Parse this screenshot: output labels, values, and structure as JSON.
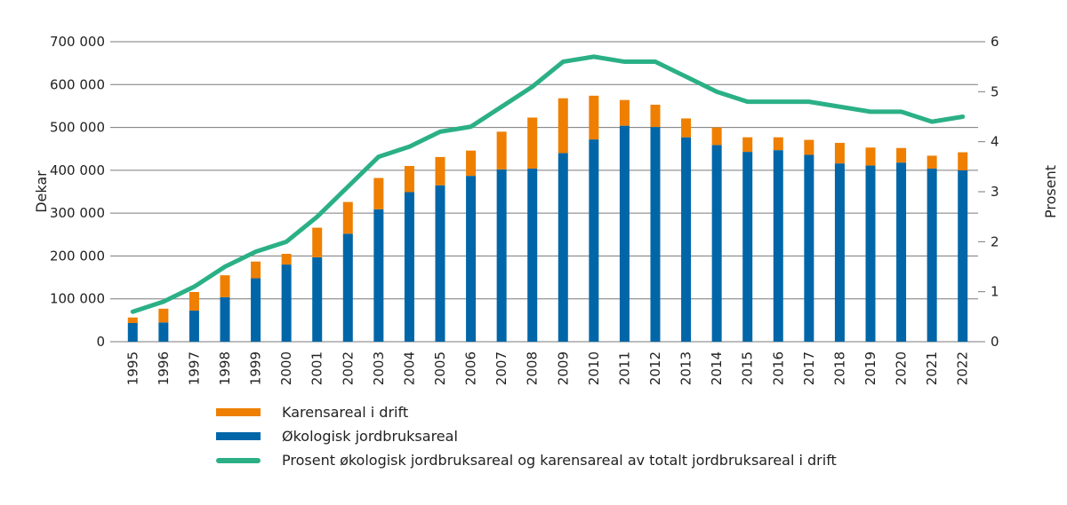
{
  "chart_data": {
    "type": "bar",
    "subtype": "stacked-bar-with-line-secondary-axis",
    "title": "",
    "categories": [
      "1995",
      "1996",
      "1997",
      "1998",
      "1999",
      "2000",
      "2001",
      "2002",
      "2003",
      "2004",
      "2005",
      "2006",
      "2007",
      "2008",
      "2009",
      "2010",
      "2011",
      "2012",
      "2013",
      "2014",
      "2015",
      "2016",
      "2017",
      "2018",
      "2019",
      "2020",
      "2021",
      "2022"
    ],
    "series": [
      {
        "name": "Økologisk jordbruksareal",
        "type": "bar",
        "axis": "left",
        "color": "#0066A8",
        "values": [
          43500,
          45000,
          72500,
          104000,
          148000,
          180000,
          197000,
          252000,
          309000,
          349000,
          365000,
          387000,
          402000,
          404000,
          440000,
          472000,
          504000,
          501000,
          477000,
          459000,
          443000,
          447000,
          436000,
          416000,
          411000,
          418000,
          404000,
          400000
        ]
      },
      {
        "name": "Karensareal i drift",
        "type": "bar",
        "axis": "left",
        "color": "#EE7F00",
        "values": [
          13000,
          32000,
          43500,
          51000,
          39000,
          25000,
          69000,
          74000,
          73000,
          61000,
          66000,
          59000,
          88000,
          119000,
          128000,
          102000,
          60000,
          52000,
          44000,
          41000,
          34000,
          30000,
          35000,
          48000,
          42000,
          34000,
          30000,
          42000
        ]
      },
      {
        "name": "Prosent økologisk jordbruksareal og karensareal av totalt jordbruksareal i drift",
        "type": "line",
        "axis": "right",
        "color": "#2BB086",
        "values": [
          0.6,
          0.8,
          1.1,
          1.5,
          1.8,
          2.0,
          2.5,
          3.1,
          3.7,
          3.9,
          4.2,
          4.3,
          4.7,
          5.1,
          5.6,
          5.7,
          5.6,
          5.6,
          5.3,
          5.0,
          4.8,
          4.8,
          4.8,
          4.7,
          4.6,
          4.6,
          4.4,
          4.5
        ]
      }
    ],
    "ylabel": "Dekar",
    "ylim": [
      0,
      700000
    ],
    "yticks": [
      0,
      100000,
      200000,
      300000,
      400000,
      500000,
      600000,
      700000
    ],
    "ytick_labels": [
      "0",
      "100 000",
      "200 000",
      "300 000",
      "400 000",
      "500 000",
      "600 000",
      "700 000"
    ],
    "y2label": "Prosent",
    "y2lim": [
      0,
      6
    ],
    "y2ticks": [
      0,
      1,
      2,
      3,
      4,
      5,
      6
    ],
    "y2tick_labels": [
      "0",
      "1",
      "2",
      "3",
      "4",
      "5",
      "6"
    ],
    "xlabel": "",
    "grid": true,
    "legend_position": "bottom",
    "legend": [
      {
        "label": "Karensareal i drift",
        "color": "#EE7F00",
        "kind": "bar"
      },
      {
        "label": "Økologisk jordbruksareal",
        "color": "#0066A8",
        "kind": "bar"
      },
      {
        "label": "Prosent økologisk jordbruksareal og karensareal av totalt jordbruksareal i drift",
        "color": "#2BB086",
        "kind": "line"
      }
    ]
  }
}
